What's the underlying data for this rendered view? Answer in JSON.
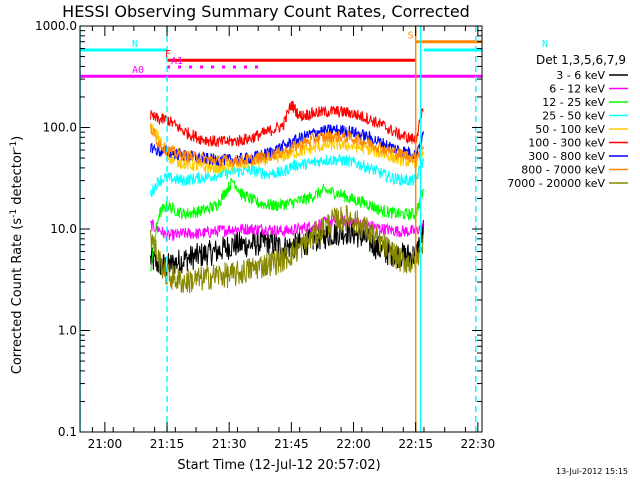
{
  "chart_data": {
    "type": "line",
    "title": "HESSI Observing Summary Count Rates, Corrected",
    "xlabel": "Start Time (12-Jul-12 20:57:02)",
    "ylabel_main": "Corrected Count Rate (s",
    "ylabel_sup1": "-1",
    "ylabel_mid": " detector",
    "ylabel_sup2": "-1",
    "ylabel_end": ")",
    "y_scale": "log",
    "ylim": [
      0.1,
      1000
    ],
    "y_ticks": [
      {
        "v": 0.1,
        "label": "0.1"
      },
      {
        "v": 1,
        "label": "1.0"
      },
      {
        "v": 10,
        "label": "10.0"
      },
      {
        "v": 100,
        "label": "100.0"
      },
      {
        "v": 1000,
        "label": "1000.0"
      }
    ],
    "x_range_min": [
      -3,
      94
    ],
    "x_ticks": [
      {
        "m": 3,
        "label": "21:00"
      },
      {
        "m": 18,
        "label": "21:15"
      },
      {
        "m": 33,
        "label": "21:30"
      },
      {
        "m": 48,
        "label": "21:45"
      },
      {
        "m": 63,
        "label": "22:00"
      },
      {
        "m": 78,
        "label": "22:15"
      },
      {
        "m": 93,
        "label": "22:30"
      }
    ],
    "legend_title": "Det 1,3,5,6,7,9",
    "legend_placement": "right",
    "series": [
      {
        "name": "3 - 6 keV",
        "color": "#000000",
        "points": [
          [
            14,
            5
          ],
          [
            16,
            4.5
          ],
          [
            18,
            4.3
          ],
          [
            22,
            5
          ],
          [
            26,
            5.5
          ],
          [
            30,
            6
          ],
          [
            34,
            7
          ],
          [
            38,
            7
          ],
          [
            42,
            7.5
          ],
          [
            46,
            6.5
          ],
          [
            50,
            7
          ],
          [
            54,
            8
          ],
          [
            58,
            9
          ],
          [
            62,
            9.5
          ],
          [
            66,
            8
          ],
          [
            70,
            6
          ],
          [
            74,
            5.5
          ],
          [
            78,
            5.5
          ],
          [
            80,
            10
          ]
        ]
      },
      {
        "name": "6 - 12 keV",
        "color": "#ff00ff",
        "points": [
          [
            14,
            11
          ],
          [
            16,
            10
          ],
          [
            18,
            8.5
          ],
          [
            22,
            9
          ],
          [
            26,
            9
          ],
          [
            30,
            9.5
          ],
          [
            34,
            10
          ],
          [
            38,
            10
          ],
          [
            42,
            10
          ],
          [
            46,
            9.5
          ],
          [
            50,
            10
          ],
          [
            54,
            11
          ],
          [
            58,
            12
          ],
          [
            62,
            12
          ],
          [
            66,
            11
          ],
          [
            70,
            10
          ],
          [
            74,
            9.5
          ],
          [
            78,
            9.5
          ],
          [
            80,
            11
          ]
        ]
      },
      {
        "name": "12 - 25 keV",
        "color": "#00ff00",
        "points": [
          [
            14,
            4
          ],
          [
            16,
            14
          ],
          [
            18,
            17
          ],
          [
            22,
            14
          ],
          [
            26,
            15
          ],
          [
            30,
            17
          ],
          [
            32,
            23
          ],
          [
            34,
            30
          ],
          [
            36,
            22
          ],
          [
            40,
            18
          ],
          [
            44,
            17
          ],
          [
            48,
            18
          ],
          [
            52,
            20
          ],
          [
            56,
            24
          ],
          [
            60,
            22
          ],
          [
            62,
            20
          ],
          [
            66,
            18
          ],
          [
            70,
            15
          ],
          [
            74,
            14
          ],
          [
            78,
            14
          ],
          [
            80,
            25
          ]
        ]
      },
      {
        "name": "25 - 50 keV",
        "color": "#00ffff",
        "points": [
          [
            14,
            22
          ],
          [
            16,
            30
          ],
          [
            18,
            32
          ],
          [
            22,
            30
          ],
          [
            26,
            32
          ],
          [
            30,
            34
          ],
          [
            34,
            37
          ],
          [
            38,
            38
          ],
          [
            42,
            35
          ],
          [
            46,
            36
          ],
          [
            48,
            42
          ],
          [
            52,
            44
          ],
          [
            56,
            48
          ],
          [
            60,
            48
          ],
          [
            64,
            44
          ],
          [
            68,
            38
          ],
          [
            72,
            32
          ],
          [
            76,
            30
          ],
          [
            78,
            30
          ],
          [
            80,
            50
          ]
        ]
      },
      {
        "name": "50 - 100 keV",
        "color": "#ffcc00",
        "points": [
          [
            14,
            100
          ],
          [
            16,
            80
          ],
          [
            18,
            52
          ],
          [
            22,
            44
          ],
          [
            26,
            41
          ],
          [
            30,
            40
          ],
          [
            34,
            42
          ],
          [
            38,
            45
          ],
          [
            42,
            48
          ],
          [
            46,
            52
          ],
          [
            50,
            58
          ],
          [
            54,
            64
          ],
          [
            58,
            68
          ],
          [
            62,
            66
          ],
          [
            66,
            62
          ],
          [
            70,
            55
          ],
          [
            74,
            48
          ],
          [
            78,
            45
          ],
          [
            80,
            60
          ]
        ]
      },
      {
        "name": "100 - 300 keV",
        "color": "#ff0000",
        "points": [
          [
            14,
            130
          ],
          [
            16,
            120
          ],
          [
            18,
            120
          ],
          [
            22,
            92
          ],
          [
            26,
            78
          ],
          [
            30,
            72
          ],
          [
            34,
            73
          ],
          [
            38,
            78
          ],
          [
            42,
            90
          ],
          [
            46,
            105
          ],
          [
            48,
            170
          ],
          [
            50,
            130
          ],
          [
            54,
            140
          ],
          [
            58,
            145
          ],
          [
            62,
            140
          ],
          [
            66,
            125
          ],
          [
            70,
            105
          ],
          [
            74,
            85
          ],
          [
            78,
            75
          ],
          [
            80,
            160
          ]
        ]
      },
      {
        "name": "300 - 800 keV",
        "color": "#0000ff",
        "points": [
          [
            14,
            65
          ],
          [
            16,
            58
          ],
          [
            18,
            58
          ],
          [
            22,
            53
          ],
          [
            26,
            50
          ],
          [
            30,
            48
          ],
          [
            34,
            48
          ],
          [
            38,
            50
          ],
          [
            42,
            55
          ],
          [
            46,
            65
          ],
          [
            50,
            78
          ],
          [
            54,
            90
          ],
          [
            58,
            95
          ],
          [
            62,
            92
          ],
          [
            66,
            82
          ],
          [
            70,
            70
          ],
          [
            74,
            60
          ],
          [
            78,
            55
          ],
          [
            80,
            90
          ]
        ]
      },
      {
        "name": "800 - 7000 keV",
        "color": "#ff8800",
        "points": [
          [
            14,
            100
          ],
          [
            16,
            70
          ],
          [
            18,
            60
          ],
          [
            22,
            53
          ],
          [
            26,
            50
          ],
          [
            30,
            47
          ],
          [
            34,
            47
          ],
          [
            38,
            48
          ],
          [
            42,
            52
          ],
          [
            46,
            58
          ],
          [
            50,
            68
          ],
          [
            54,
            78
          ],
          [
            58,
            82
          ],
          [
            62,
            80
          ],
          [
            66,
            72
          ],
          [
            70,
            62
          ],
          [
            74,
            55
          ],
          [
            78,
            50
          ],
          [
            80,
            70
          ]
        ]
      },
      {
        "name": "7000 - 20000 keV",
        "color": "#888800",
        "points": [
          [
            14,
            9
          ],
          [
            16,
            5
          ],
          [
            18,
            3.5
          ],
          [
            22,
            3
          ],
          [
            26,
            3.2
          ],
          [
            30,
            3.5
          ],
          [
            34,
            3.5
          ],
          [
            38,
            4
          ],
          [
            42,
            4.5
          ],
          [
            46,
            5
          ],
          [
            50,
            6.5
          ],
          [
            54,
            9
          ],
          [
            58,
            12
          ],
          [
            62,
            13
          ],
          [
            66,
            10
          ],
          [
            70,
            7
          ],
          [
            74,
            5
          ],
          [
            78,
            4.5
          ],
          [
            80,
            8
          ]
        ]
      }
    ],
    "flags": [
      {
        "label": "N",
        "color": "#00ffff",
        "value": 580,
        "x0": -3,
        "x1": 18
      },
      {
        "label": "N",
        "color": "#00ffff",
        "value": 580,
        "x0": 80,
        "x1": 94
      },
      {
        "label": "F",
        "color": "#ff0000",
        "value": 460,
        "x0": 18,
        "x1": 78
      },
      {
        "label": "S",
        "color": "#ff8800",
        "value": 700,
        "x0": 78,
        "x1": 94
      },
      {
        "label": "A0",
        "color": "#ff00ff",
        "value": 320,
        "x0": -3,
        "x1": 94
      },
      {
        "label": "A1",
        "color": "#ff00ff",
        "value": 395,
        "x0": 18,
        "x1": 40,
        "dotted": true
      }
    ],
    "vlines": [
      {
        "m": -3,
        "color": "#00ffff",
        "dashed": false
      },
      {
        "m": 18,
        "color": "#00ffff",
        "dashed": true
      },
      {
        "m": 78,
        "color": "#ff8800",
        "dashed": false
      },
      {
        "m": 79.2,
        "color": "#00ffff",
        "dashed": false
      },
      {
        "m": 92.5,
        "color": "#00ffff",
        "dashed": true
      }
    ]
  },
  "footer": {
    "timestamp": "13-Jul-2012 15:15"
  }
}
